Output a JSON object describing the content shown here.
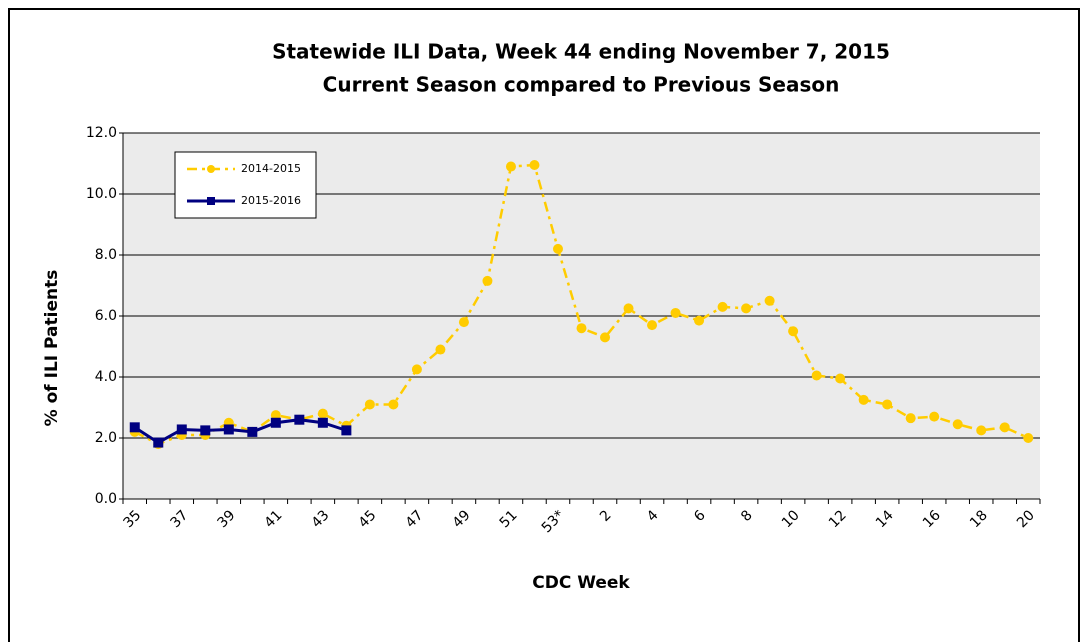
{
  "chart_data": {
    "type": "line",
    "title": "Statewide ILI Data, Week 44 ending November 7, 2015",
    "subtitle": "Current Season compared to Previous Season",
    "x_label": "CDC Week",
    "y_label": "% of ILI Patients",
    "categories": [
      "35",
      null,
      "37",
      null,
      "39",
      null,
      "41",
      null,
      "43",
      null,
      "45",
      null,
      "47",
      null,
      "49",
      null,
      "51",
      null,
      "53*",
      null,
      "2",
      null,
      "4",
      null,
      "6",
      null,
      "8",
      null,
      "10",
      null,
      "12",
      null,
      "14",
      null,
      "16",
      null,
      "18",
      null,
      "20"
    ],
    "series": [
      {
        "name": "2014-2015",
        "color": "#ffcc00",
        "values": [
          2.2,
          1.8,
          2.1,
          2.1,
          2.5,
          2.2,
          2.75,
          2.6,
          2.8,
          2.4,
          3.1,
          3.1,
          4.25,
          4.9,
          5.8,
          7.15,
          10.9,
          10.95,
          8.2,
          5.6,
          5.3,
          6.25,
          5.7,
          6.1,
          5.85,
          6.3,
          6.25,
          6.5,
          5.5,
          4.05,
          3.95,
          3.25,
          3.1,
          2.65,
          2.7,
          2.45,
          2.25,
          2.35,
          2.0
        ]
      },
      {
        "name": "2015-2016",
        "color": "#000080",
        "values": [
          2.35,
          1.85,
          2.28,
          2.25,
          2.28,
          2.2,
          2.5,
          2.6,
          2.5,
          2.25,
          null,
          null,
          null,
          null,
          null,
          null,
          null,
          null,
          null,
          null,
          null,
          null,
          null,
          null,
          null,
          null,
          null,
          null,
          null,
          null,
          null,
          null,
          null,
          null,
          null,
          null,
          null,
          null,
          null
        ]
      }
    ],
    "ylim": [
      0,
      12
    ],
    "yticks": [
      {
        "value": 0,
        "label": "0.0"
      },
      {
        "value": 2,
        "label": "2.0"
      },
      {
        "value": 4,
        "label": "4.0"
      },
      {
        "value": 6,
        "label": "6.0"
      },
      {
        "value": 8,
        "label": "8.0"
      },
      {
        "value": 10,
        "label": "10.0"
      },
      {
        "value": 12,
        "label": "12.0"
      }
    ],
    "grid": true,
    "legend": "upper left"
  }
}
